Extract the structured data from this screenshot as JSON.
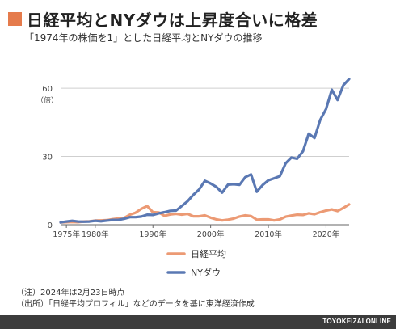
{
  "title": "日経平均とNYダウは上昇度合いに格差",
  "subtitle": "「1974年の株価を1」とした日経平均とNYダウの推移",
  "notes": [
    "（注）2024年は2月23日時点",
    "（出所）「日経平均プロフィル」などのデータを基に東洋経済作成"
  ],
  "footer": "TOYOKEIZAI ONLINE",
  "colors": {
    "accent": "#e57b4c",
    "nikkei": "#ec9a74",
    "ny": "#5a78b3",
    "grid": "#cfcfcf",
    "axis": "#666666"
  },
  "chart_data": {
    "type": "line",
    "ylabel": "（倍）",
    "ylim": [
      0,
      65
    ],
    "yticks": [
      0,
      30,
      60
    ],
    "xlim": [
      1974,
      2024
    ],
    "xticks": [
      {
        "year": 1975,
        "label": "1975年"
      },
      {
        "year": 1980,
        "label": "1980年"
      },
      {
        "year": 1990,
        "label": "1990年"
      },
      {
        "year": 2000,
        "label": "2000年"
      },
      {
        "year": 2010,
        "label": "2010年"
      },
      {
        "year": 2020,
        "label": "2020年"
      }
    ],
    "grid": true,
    "legend_position": "bottom-center",
    "x": [
      1974,
      1975,
      1976,
      1977,
      1978,
      1979,
      1980,
      1981,
      1982,
      1983,
      1984,
      1985,
      1986,
      1987,
      1988,
      1989,
      1990,
      1991,
      1992,
      1993,
      1994,
      1995,
      1996,
      1997,
      1998,
      1999,
      2000,
      2001,
      2002,
      2003,
      2004,
      2005,
      2006,
      2007,
      2008,
      2009,
      2010,
      2011,
      2012,
      2013,
      2014,
      2015,
      2016,
      2017,
      2018,
      2019,
      2020,
      2021,
      2022,
      2023,
      2024
    ],
    "series": [
      {
        "name": "日経平均",
        "values": [
          1,
          1.1,
          1.2,
          1.1,
          1.4,
          1.5,
          1.8,
          1.9,
          2.0,
          2.4,
          2.7,
          3.0,
          4.4,
          5.3,
          7.0,
          8.2,
          5.5,
          5.4,
          3.9,
          4.5,
          4.8,
          4.4,
          4.8,
          3.7,
          3.7,
          4.1,
          3.1,
          2.3,
          1.9,
          2.2,
          2.7,
          3.6,
          4.1,
          3.8,
          2.2,
          2.3,
          2.3,
          1.9,
          2.3,
          3.5,
          4.0,
          4.4,
          4.3,
          5.0,
          4.6,
          5.5,
          6.2,
          6.7,
          6.0,
          7.4,
          8.9
        ]
      },
      {
        "name": "NYダウ",
        "values": [
          1,
          1.4,
          1.7,
          1.4,
          1.3,
          1.4,
          1.7,
          1.5,
          1.8,
          2.1,
          2.1,
          2.6,
          3.3,
          3.3,
          3.6,
          4.4,
          4.3,
          5.0,
          5.5,
          6.1,
          6.2,
          8.2,
          10.3,
          13.1,
          15.5,
          19.3,
          18.1,
          16.6,
          14.1,
          17.6,
          17.8,
          17.5,
          20.9,
          22.1,
          14.5,
          17.4,
          19.5,
          20.4,
          21.3,
          27.0,
          29.5,
          29.0,
          32.3,
          40.0,
          38.1,
          46.1,
          50.8,
          59.3,
          54.8,
          61.3,
          64.0
        ]
      }
    ]
  }
}
